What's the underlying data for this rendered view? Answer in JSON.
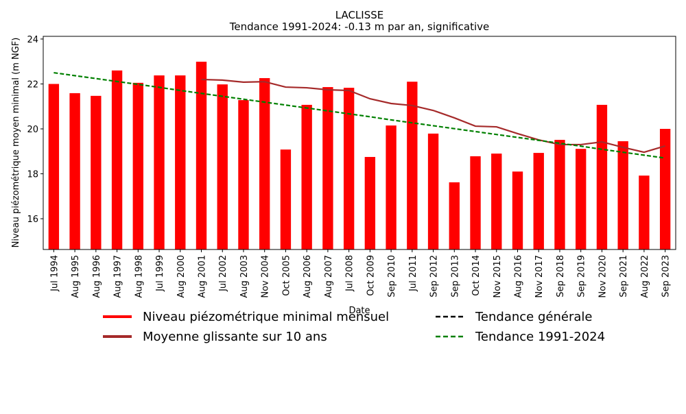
{
  "chart_data": {
    "type": "bar",
    "title": "LACLISSE",
    "subtitle": "Tendance 1991-2024: -0.13 m par an, significative",
    "x_label": "Date",
    "y_label": "Niveau piézométrique moyen minimal (m NGF)",
    "categories": [
      "Jul 1994",
      "Aug 1995",
      "Aug 1996",
      "Aug 1997",
      "Aug 1998",
      "Jul 1999",
      "Aug 2000",
      "Aug 2001",
      "Jul 2002",
      "Aug 2003",
      "Nov 2004",
      "Oct 2005",
      "Aug 2006",
      "Aug 2007",
      "Jul 2008",
      "Oct 2009",
      "Sep 2010",
      "Jul 2011",
      "Sep 2012",
      "Sep 2013",
      "Oct 2014",
      "Nov 2015",
      "Aug 2016",
      "Nov 2017",
      "Sep 2018",
      "Sep 2019",
      "Nov 2020",
      "Sep 2021",
      "Aug 2022",
      "Sep 2023"
    ],
    "series": [
      {
        "name": "Niveau piézométrique minimal mensuel",
        "type": "bar",
        "color": "#ff0000",
        "values": [
          22.0,
          21.59,
          21.47,
          22.6,
          22.05,
          22.38,
          22.38,
          22.99,
          21.98,
          21.28,
          22.26,
          19.08,
          21.07,
          21.86,
          21.83,
          18.75,
          20.15,
          22.1,
          19.79,
          17.62,
          18.78,
          18.9,
          18.1,
          18.93,
          19.51,
          19.11,
          21.07,
          19.45,
          17.92,
          20.0
        ]
      },
      {
        "name": "Moyenne glissante sur 10 ans",
        "type": "line",
        "color": "#a52a2a",
        "dashed": false,
        "values": [
          null,
          null,
          null,
          null,
          null,
          null,
          null,
          22.2,
          22.17,
          22.08,
          22.1,
          21.86,
          21.83,
          21.74,
          21.71,
          21.34,
          21.13,
          21.04,
          20.82,
          20.49,
          20.12,
          20.09,
          19.79,
          19.51,
          19.3,
          19.3,
          19.42,
          19.18,
          18.96,
          19.24
        ]
      },
      {
        "name": "Tendance générale",
        "type": "line",
        "color": "#000000",
        "dashed": true,
        "values": [
          null,
          null,
          null,
          null,
          null,
          null,
          null,
          null,
          null,
          null,
          null,
          null,
          null,
          null,
          null,
          null,
          null,
          null,
          null,
          null,
          null,
          null,
          null,
          null,
          null,
          null,
          null,
          null,
          null,
          null
        ]
      },
      {
        "name": "Tendance 1991-2024",
        "type": "line",
        "color": "#008000",
        "dashed": true,
        "values": [
          22.5,
          22.37,
          22.24,
          22.11,
          21.98,
          21.85,
          21.71,
          21.58,
          21.45,
          21.32,
          21.19,
          21.06,
          20.93,
          20.8,
          20.67,
          20.54,
          20.4,
          20.27,
          20.14,
          20.01,
          19.88,
          19.75,
          19.62,
          19.49,
          19.36,
          19.23,
          19.09,
          18.96,
          18.83,
          18.7
        ]
      }
    ],
    "ylim": [
      14.63,
      24.12
    ],
    "yticks": [
      16,
      18,
      20,
      22,
      24
    ],
    "grid": false,
    "legend": "bottom"
  }
}
